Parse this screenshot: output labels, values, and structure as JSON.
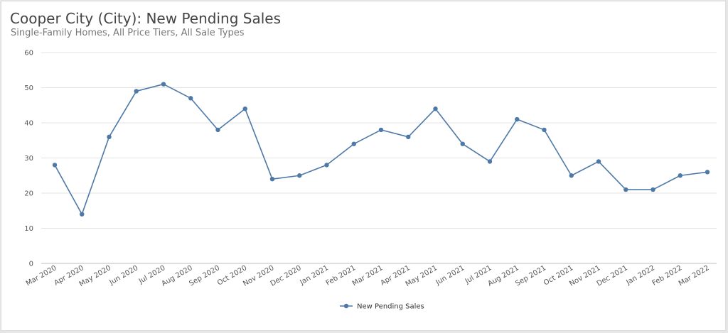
{
  "title": "Cooper City (City): New Pending Sales",
  "subtitle": "Single-Family Homes, All Price Tiers, All Sale Types",
  "chart_data": {
    "type": "line",
    "title": "Cooper City (City): New Pending Sales",
    "subtitle": "Single-Family Homes, All Price Tiers, All Sale Types",
    "xlabel": "",
    "ylabel": "",
    "ylim": [
      0,
      60
    ],
    "yticks": [
      0,
      10,
      20,
      30,
      40,
      50,
      60
    ],
    "grid": true,
    "legend_position": "bottom",
    "categories": [
      "Mar 2020",
      "Apr 2020",
      "May 2020",
      "Jun 2020",
      "Jul 2020",
      "Aug 2020",
      "Sep 2020",
      "Oct 2020",
      "Nov 2020",
      "Dec 2020",
      "Jan 2021",
      "Feb 2021",
      "Mar 2021",
      "Apr 2021",
      "May 2021",
      "Jun 2021",
      "Jul 2021",
      "Aug 2021",
      "Sep 2021",
      "Oct 2021",
      "Nov 2021",
      "Dec 2021",
      "Jan 2022",
      "Feb 2022",
      "Mar 2022"
    ],
    "series": [
      {
        "name": "New Pending Sales",
        "color": "#4e79a7",
        "values": [
          28,
          14,
          36,
          49,
          51,
          47,
          38,
          44,
          24,
          25,
          28,
          34,
          38,
          36,
          44,
          34,
          29,
          41,
          38,
          25,
          29,
          21,
          21,
          25,
          26
        ]
      }
    ]
  }
}
